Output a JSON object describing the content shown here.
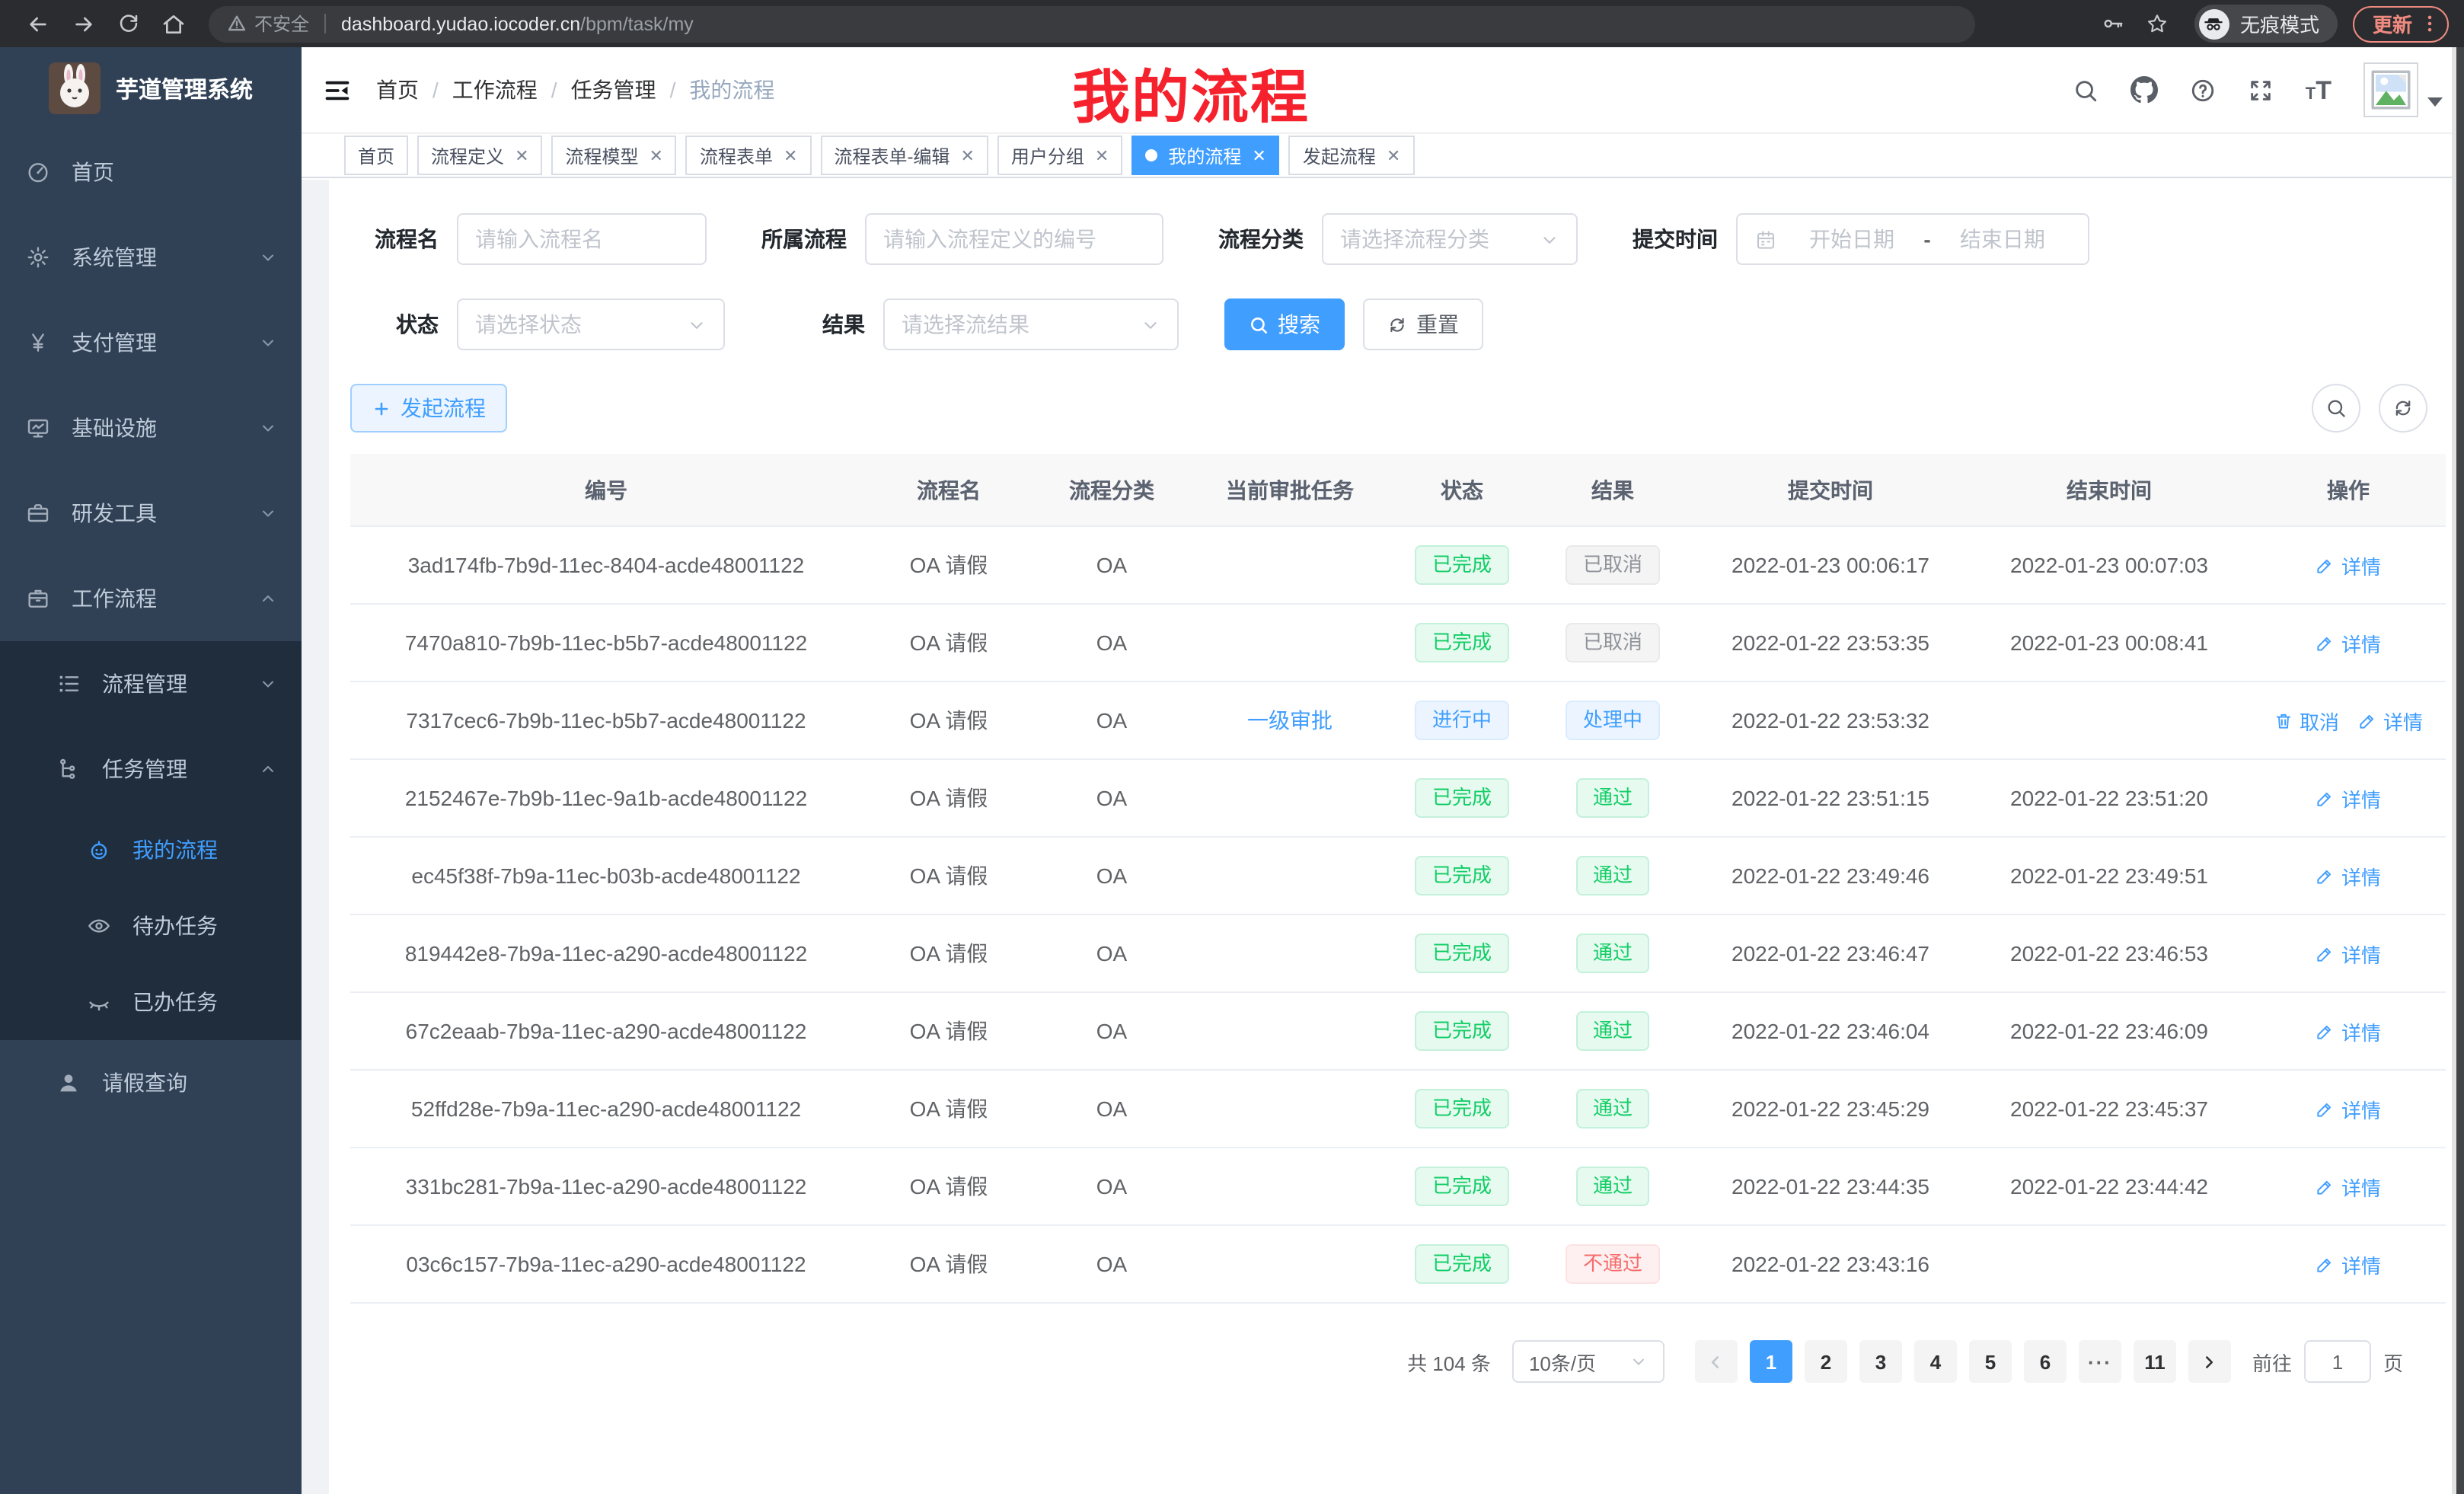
{
  "browser": {
    "security_chip": "不安全",
    "url_host": "dashboard.yudao.iocoder.cn",
    "url_path": "/bpm/task/my",
    "incognito_label": "无痕模式",
    "update_label": "更新",
    "update_color": "#ef8a80"
  },
  "annotation": {
    "text": "我的流程",
    "color": "#f5222d"
  },
  "sidebar": {
    "logo_title": "芋道管理系统",
    "menu": [
      {
        "key": "home",
        "label": "首页",
        "icon": "dashboard-icon",
        "level": 1
      },
      {
        "key": "system",
        "label": "系统管理",
        "icon": "gear-icon",
        "level": 1,
        "chevron": "down"
      },
      {
        "key": "payment",
        "label": "支付管理",
        "icon": "yen-icon",
        "level": 1,
        "chevron": "down"
      },
      {
        "key": "infrastructure",
        "label": "基础设施",
        "icon": "monitor-icon",
        "level": 1,
        "chevron": "down"
      },
      {
        "key": "dev-tools",
        "label": "研发工具",
        "icon": "toolbox-icon",
        "level": 1,
        "chevron": "down"
      },
      {
        "key": "workflow",
        "label": "工作流程",
        "icon": "briefcase-icon",
        "level": 1,
        "chevron": "up"
      },
      {
        "key": "process-mgmt",
        "label": "流程管理",
        "icon": "list-icon",
        "level": 2,
        "chevron": "down",
        "submenu": true
      },
      {
        "key": "task-mgmt",
        "label": "任务管理",
        "icon": "flow-icon",
        "level": 2,
        "chevron": "up",
        "submenu": true
      },
      {
        "key": "my-process",
        "label": "我的流程",
        "icon": "robot-icon",
        "level": 3,
        "submenu": true,
        "active": true
      },
      {
        "key": "todo-task",
        "label": "待办任务",
        "icon": "eye-open-icon",
        "level": 3,
        "submenu": true
      },
      {
        "key": "done-task",
        "label": "已办任务",
        "icon": "eye-closed-icon",
        "level": 3,
        "submenu": true
      },
      {
        "key": "leave-query",
        "label": "请假查询",
        "icon": "user-icon",
        "level": 2
      }
    ]
  },
  "header": {
    "breadcrumb": [
      "首页",
      "工作流程",
      "任务管理",
      "我的流程"
    ]
  },
  "tabs": [
    {
      "key": "home",
      "label": "首页"
    },
    {
      "key": "process-definition",
      "label": "流程定义",
      "closable": true
    },
    {
      "key": "process-model",
      "label": "流程模型",
      "closable": true
    },
    {
      "key": "process-form",
      "label": "流程表单",
      "closable": true
    },
    {
      "key": "process-form-edit",
      "label": "流程表单-编辑",
      "closable": true
    },
    {
      "key": "user-group",
      "label": "用户分组",
      "closable": true
    },
    {
      "key": "my-process",
      "label": "我的流程",
      "closable": true,
      "active": true
    },
    {
      "key": "start-process",
      "label": "发起流程",
      "closable": true
    }
  ],
  "filters": {
    "name": {
      "label": "流程名",
      "placeholder": "请输入流程名"
    },
    "definition": {
      "label": "所属流程",
      "placeholder": "请输入流程定义的编号"
    },
    "category": {
      "label": "流程分类",
      "placeholder": "请选择流程分类"
    },
    "submit_time": {
      "label": "提交时间",
      "start_placeholder": "开始日期",
      "separator": "-",
      "end_placeholder": "结束日期"
    },
    "status": {
      "label": "状态",
      "placeholder": "请选择状态"
    },
    "result": {
      "label": "结果",
      "placeholder": "请选择流结果"
    },
    "search_label": "搜索",
    "reset_label": "重置"
  },
  "toolbar": {
    "create_label": "发起流程"
  },
  "table": {
    "columns": [
      "编号",
      "流程名",
      "流程分类",
      "当前审批任务",
      "状态",
      "结果",
      "提交时间",
      "结束时间",
      "操作"
    ],
    "rows": [
      {
        "id": "3ad174fb-7b9d-11ec-8404-acde48001122",
        "name": "OA 请假",
        "category": "OA",
        "task": "",
        "status": {
          "text": "已完成",
          "type": "success"
        },
        "result": {
          "text": "已取消",
          "type": "info"
        },
        "submit_time": "2022-01-23 00:06:17",
        "end_time": "2022-01-23 00:07:03",
        "actions": [
          {
            "label": "详情",
            "icon": "edit-icon",
            "name": "detail-link"
          }
        ]
      },
      {
        "id": "7470a810-7b9b-11ec-b5b7-acde48001122",
        "name": "OA 请假",
        "category": "OA",
        "task": "",
        "status": {
          "text": "已完成",
          "type": "success"
        },
        "result": {
          "text": "已取消",
          "type": "info"
        },
        "submit_time": "2022-01-22 23:53:35",
        "end_time": "2022-01-23 00:08:41",
        "actions": [
          {
            "label": "详情",
            "icon": "edit-icon",
            "name": "detail-link"
          }
        ]
      },
      {
        "id": "7317cec6-7b9b-11ec-b5b7-acde48001122",
        "name": "OA 请假",
        "category": "OA",
        "task": "一级审批",
        "status": {
          "text": "进行中",
          "type": "primary"
        },
        "result": {
          "text": "处理中",
          "type": "primary"
        },
        "submit_time": "2022-01-22 23:53:32",
        "end_time": "",
        "actions": [
          {
            "label": "取消",
            "icon": "delete-icon",
            "name": "cancel-link"
          },
          {
            "label": "详情",
            "icon": "edit-icon",
            "name": "detail-link"
          }
        ]
      },
      {
        "id": "2152467e-7b9b-11ec-9a1b-acde48001122",
        "name": "OA 请假",
        "category": "OA",
        "task": "",
        "status": {
          "text": "已完成",
          "type": "success"
        },
        "result": {
          "text": "通过",
          "type": "success"
        },
        "submit_time": "2022-01-22 23:51:15",
        "end_time": "2022-01-22 23:51:20",
        "actions": [
          {
            "label": "详情",
            "icon": "edit-icon",
            "name": "detail-link"
          }
        ]
      },
      {
        "id": "ec45f38f-7b9a-11ec-b03b-acde48001122",
        "name": "OA 请假",
        "category": "OA",
        "task": "",
        "status": {
          "text": "已完成",
          "type": "success"
        },
        "result": {
          "text": "通过",
          "type": "success"
        },
        "submit_time": "2022-01-22 23:49:46",
        "end_time": "2022-01-22 23:49:51",
        "actions": [
          {
            "label": "详情",
            "icon": "edit-icon",
            "name": "detail-link"
          }
        ]
      },
      {
        "id": "819442e8-7b9a-11ec-a290-acde48001122",
        "name": "OA 请假",
        "category": "OA",
        "task": "",
        "status": {
          "text": "已完成",
          "type": "success"
        },
        "result": {
          "text": "通过",
          "type": "success"
        },
        "submit_time": "2022-01-22 23:46:47",
        "end_time": "2022-01-22 23:46:53",
        "actions": [
          {
            "label": "详情",
            "icon": "edit-icon",
            "name": "detail-link"
          }
        ]
      },
      {
        "id": "67c2eaab-7b9a-11ec-a290-acde48001122",
        "name": "OA 请假",
        "category": "OA",
        "task": "",
        "status": {
          "text": "已完成",
          "type": "success"
        },
        "result": {
          "text": "通过",
          "type": "success"
        },
        "submit_time": "2022-01-22 23:46:04",
        "end_time": "2022-01-22 23:46:09",
        "actions": [
          {
            "label": "详情",
            "icon": "edit-icon",
            "name": "detail-link"
          }
        ]
      },
      {
        "id": "52ffd28e-7b9a-11ec-a290-acde48001122",
        "name": "OA 请假",
        "category": "OA",
        "task": "",
        "status": {
          "text": "已完成",
          "type": "success"
        },
        "result": {
          "text": "通过",
          "type": "success"
        },
        "submit_time": "2022-01-22 23:45:29",
        "end_time": "2022-01-22 23:45:37",
        "actions": [
          {
            "label": "详情",
            "icon": "edit-icon",
            "name": "detail-link"
          }
        ]
      },
      {
        "id": "331bc281-7b9a-11ec-a290-acde48001122",
        "name": "OA 请假",
        "category": "OA",
        "task": "",
        "status": {
          "text": "已完成",
          "type": "success"
        },
        "result": {
          "text": "通过",
          "type": "success"
        },
        "submit_time": "2022-01-22 23:44:35",
        "end_time": "2022-01-22 23:44:42",
        "actions": [
          {
            "label": "详情",
            "icon": "edit-icon",
            "name": "detail-link"
          }
        ]
      },
      {
        "id": "03c6c157-7b9a-11ec-a290-acde48001122",
        "name": "OA 请假",
        "category": "OA",
        "task": "",
        "status": {
          "text": "已完成",
          "type": "success"
        },
        "result": {
          "text": "不通过",
          "type": "danger"
        },
        "submit_time": "2022-01-22 23:43:16",
        "end_time": "",
        "actions": [
          {
            "label": "详情",
            "icon": "edit-icon",
            "name": "detail-link"
          }
        ]
      }
    ]
  },
  "pagination": {
    "total": "共 104 条",
    "page_size": "10条/页",
    "pages": [
      "1",
      "2",
      "3",
      "4",
      "5",
      "6",
      "...",
      "11"
    ],
    "active_page": "1",
    "jump_prefix": "前往",
    "jump_value": "1",
    "jump_suffix": "页"
  },
  "colors": {
    "primary": "#409eff",
    "success": "#13ce66",
    "danger": "#f56c6c",
    "info": "#909399"
  }
}
